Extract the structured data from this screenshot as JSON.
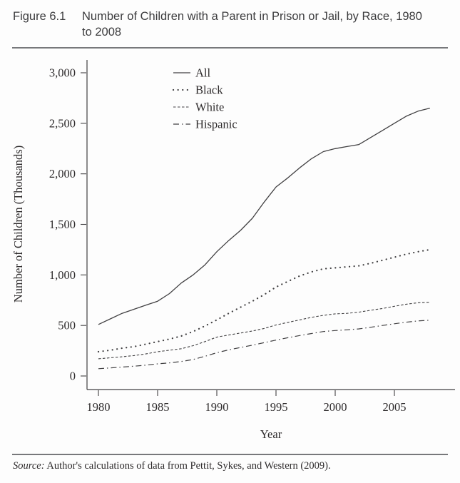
{
  "figure": {
    "label": "Figure 6.1",
    "title": "Number of Children with a Parent in Prison or Jail, by Race, 1980 to 2008"
  },
  "source": {
    "prefix": "Source:",
    "text": " Author's calculations of data from Pettit, Sykes, and Western (2009)."
  },
  "chart_data": {
    "type": "line",
    "title": "Number of Children with a Parent in Prison or Jail, by Race, 1980 to 2008",
    "xlabel": "Year",
    "ylabel": "Number of Children (Thousands)",
    "xlim": [
      1980,
      2008
    ],
    "ylim": [
      0,
      3000
    ],
    "grid": false,
    "legend_position": "inside-top-center",
    "line_color": "#414042",
    "xticks": [
      1980,
      1985,
      1990,
      1995,
      2000,
      2005
    ],
    "yticks": [
      0,
      500,
      1000,
      1500,
      2000,
      2500,
      3000
    ],
    "ytick_labels": [
      "0",
      "500",
      "1,000",
      "1,500",
      "2,000",
      "2,500",
      "3,000"
    ],
    "x": [
      1980,
      1981,
      1982,
      1983,
      1984,
      1985,
      1986,
      1987,
      1988,
      1989,
      1990,
      1991,
      1992,
      1993,
      1994,
      1995,
      1996,
      1997,
      1998,
      1999,
      2000,
      2001,
      2002,
      2003,
      2004,
      2005,
      2006,
      2007,
      2008
    ],
    "series": [
      {
        "name": "All",
        "style": "solid",
        "values": [
          510,
          565,
          620,
          660,
          700,
          740,
          815,
          920,
          1000,
          1100,
          1230,
          1340,
          1440,
          1560,
          1720,
          1870,
          1960,
          2060,
          2150,
          2220,
          2250,
          2270,
          2290,
          2360,
          2430,
          2500,
          2570,
          2620,
          2650
        ]
      },
      {
        "name": "Black",
        "style": "dotted",
        "values": [
          240,
          255,
          275,
          290,
          315,
          340,
          365,
          395,
          440,
          495,
          555,
          620,
          680,
          740,
          805,
          880,
          935,
          990,
          1030,
          1060,
          1070,
          1080,
          1090,
          1115,
          1145,
          1175,
          1205,
          1230,
          1250
        ]
      },
      {
        "name": "White",
        "style": "dashed",
        "values": [
          170,
          180,
          190,
          202,
          218,
          240,
          255,
          270,
          300,
          340,
          385,
          405,
          425,
          445,
          470,
          505,
          530,
          555,
          580,
          600,
          615,
          620,
          632,
          650,
          668,
          690,
          710,
          725,
          730
        ]
      },
      {
        "name": "Hispanic",
        "style": "dashdot",
        "values": [
          72,
          80,
          88,
          97,
          107,
          120,
          130,
          143,
          163,
          195,
          230,
          258,
          282,
          305,
          330,
          355,
          378,
          400,
          420,
          440,
          450,
          457,
          466,
          482,
          500,
          517,
          532,
          545,
          552
        ]
      }
    ]
  }
}
